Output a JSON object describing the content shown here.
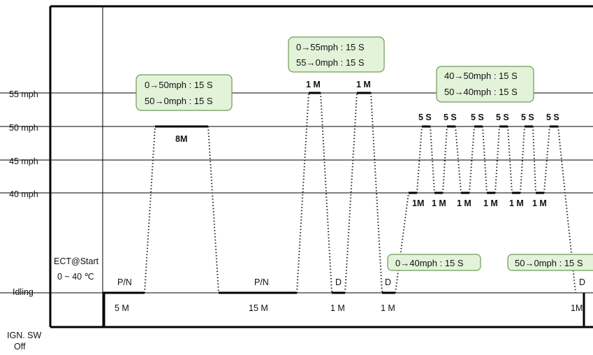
{
  "y_axis": {
    "speed_labels": [
      "55 mph",
      "50 mph",
      "45 mph",
      "40 mph"
    ],
    "idle_label": "Idling",
    "ignition_label": [
      "IGN. SW",
      "Off"
    ],
    "ect_label": [
      "ECT@Start",
      "0 ~ 40 ℃"
    ]
  },
  "phases": {
    "pn_1": "P/N",
    "pn_2": "P/N",
    "idle_5m": "5 M",
    "cruise_8m": "8M",
    "idle_15m": "15 M",
    "peak_1m_a": "1 M",
    "peak_1m_b": "1 M",
    "d_1": "D",
    "d_2": "D",
    "d_3": "D",
    "idle_1m_a": "1 M",
    "idle_1m_b": "1 M",
    "idle_1m_end": "1M",
    "low_1m": [
      "1M",
      "1 M",
      "1 M",
      "1 M",
      "1 M",
      "1 M"
    ],
    "high_5s": [
      "5 S",
      "5 S",
      "5 S",
      "5 S",
      "5 S",
      "5 S"
    ]
  },
  "boxes": {
    "ramp_50": [
      "0→50mph : 15 S",
      "50→0mph : 15 S"
    ],
    "ramp_55": [
      "0→55mph : 15 S",
      "55→0mph : 15 S"
    ],
    "cycle_40_50": [
      "40→50mph : 15 S",
      "50→40mph : 15 S"
    ],
    "ramp_40": "0→40mph : 15 S",
    "ramp_down_0": "50→0mph : 15 S"
  },
  "colors": {
    "box_fill": "#e3f3d9",
    "box_border": "#6f9a57",
    "axis": "#000000",
    "grid": "#000000",
    "dotted": "#222222"
  }
}
